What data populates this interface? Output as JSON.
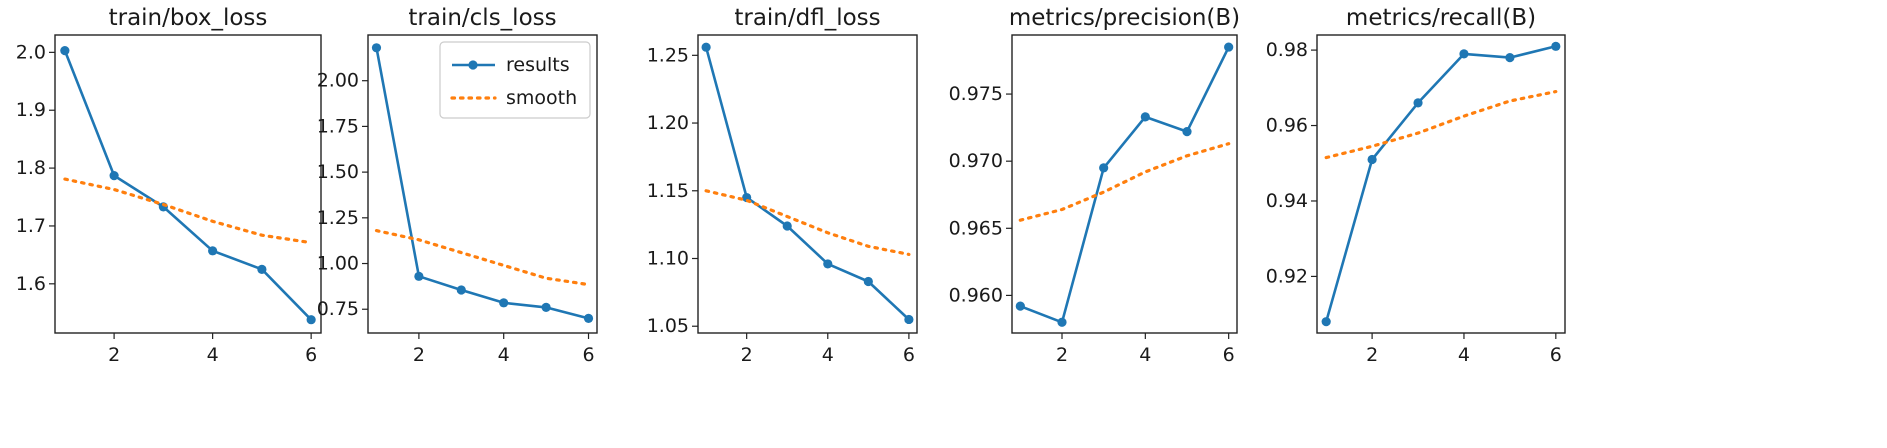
{
  "chart_data": [
    {
      "type": "line",
      "title": "train/box_loss",
      "x": [
        1,
        2,
        3,
        4,
        5,
        6
      ],
      "xticks": [
        2,
        4,
        6
      ],
      "xlim": [
        0.8,
        6.2
      ],
      "ylim": [
        1.515,
        2.03
      ],
      "yticks": [
        1.6,
        1.7,
        1.8,
        1.9,
        2.0
      ],
      "ytick_labels": [
        "1.6",
        "1.7",
        "1.8",
        "1.9",
        "2.0"
      ],
      "series": [
        {
          "name": "results",
          "style": "solid-markers",
          "color": "#1f77b4",
          "values": [
            2.003,
            1.787,
            1.733,
            1.657,
            1.625,
            1.538
          ]
        },
        {
          "name": "smooth",
          "style": "dotted",
          "color": "#ff7f0e",
          "values": [
            1.781,
            1.763,
            1.737,
            1.708,
            1.684,
            1.671
          ]
        }
      ],
      "legend": false
    },
    {
      "type": "line",
      "title": "train/cls_loss",
      "x": [
        1,
        2,
        3,
        4,
        5,
        6
      ],
      "xticks": [
        2,
        4,
        6
      ],
      "xlim": [
        0.8,
        6.2
      ],
      "ylim": [
        0.62,
        2.25
      ],
      "yticks": [
        0.75,
        1.0,
        1.25,
        1.5,
        1.75,
        2.0
      ],
      "ytick_labels": [
        "0.75",
        "1.00",
        "1.25",
        "1.50",
        "1.75",
        "2.00"
      ],
      "series": [
        {
          "name": "results",
          "style": "solid-markers",
          "color": "#1f77b4",
          "values": [
            2.18,
            0.93,
            0.855,
            0.785,
            0.76,
            0.7
          ]
        },
        {
          "name": "smooth",
          "style": "dotted",
          "color": "#ff7f0e",
          "values": [
            1.18,
            1.13,
            1.06,
            0.99,
            0.92,
            0.885
          ]
        }
      ],
      "legend": true,
      "legend_position": "top-right",
      "legend_entries": [
        "results",
        "smooth"
      ]
    },
    {
      "type": "line",
      "title": "train/dfl_loss",
      "x": [
        1,
        2,
        3,
        4,
        5,
        6
      ],
      "xticks": [
        2,
        4,
        6
      ],
      "xlim": [
        0.8,
        6.2
      ],
      "ylim": [
        1.045,
        1.265
      ],
      "yticks": [
        1.05,
        1.1,
        1.15,
        1.2,
        1.25
      ],
      "ytick_labels": [
        "1.05",
        "1.10",
        "1.15",
        "1.20",
        "1.25"
      ],
      "series": [
        {
          "name": "results",
          "style": "solid-markers",
          "color": "#1f77b4",
          "values": [
            1.256,
            1.145,
            1.124,
            1.096,
            1.083,
            1.055
          ]
        },
        {
          "name": "smooth",
          "style": "dotted",
          "color": "#ff7f0e",
          "values": [
            1.15,
            1.143,
            1.131,
            1.119,
            1.109,
            1.103
          ]
        }
      ],
      "legend": false
    },
    {
      "type": "line",
      "title": "metrics/precision(B)",
      "x": [
        1,
        2,
        3,
        4,
        5,
        6
      ],
      "xticks": [
        2,
        4,
        6
      ],
      "xlim": [
        0.8,
        6.2
      ],
      "ylim": [
        0.9572,
        0.9794
      ],
      "yticks": [
        0.96,
        0.965,
        0.97,
        0.975
      ],
      "ytick_labels": [
        "0.960",
        "0.965",
        "0.970",
        "0.975"
      ],
      "series": [
        {
          "name": "results",
          "style": "solid-markers",
          "color": "#1f77b4",
          "values": [
            0.9592,
            0.958,
            0.9695,
            0.9733,
            0.9722,
            0.9785
          ]
        },
        {
          "name": "smooth",
          "style": "dotted",
          "color": "#ff7f0e",
          "values": [
            0.9656,
            0.9664,
            0.9677,
            0.9692,
            0.9704,
            0.9713
          ]
        }
      ],
      "legend": false
    },
    {
      "type": "line",
      "title": "metrics/recall(B)",
      "x": [
        1,
        2,
        3,
        4,
        5,
        6
      ],
      "xticks": [
        2,
        4,
        6
      ],
      "xlim": [
        0.8,
        6.2
      ],
      "ylim": [
        0.905,
        0.984
      ],
      "yticks": [
        0.92,
        0.94,
        0.96,
        0.98
      ],
      "ytick_labels": [
        "0.92",
        "0.94",
        "0.96",
        "0.98"
      ],
      "series": [
        {
          "name": "results",
          "style": "solid-markers",
          "color": "#1f77b4",
          "values": [
            0.908,
            0.951,
            0.966,
            0.979,
            0.978,
            0.981
          ]
        },
        {
          "name": "smooth",
          "style": "dotted",
          "color": "#ff7f0e",
          "values": [
            0.9515,
            0.9545,
            0.958,
            0.9625,
            0.9665,
            0.969
          ]
        }
      ],
      "legend": false
    }
  ]
}
